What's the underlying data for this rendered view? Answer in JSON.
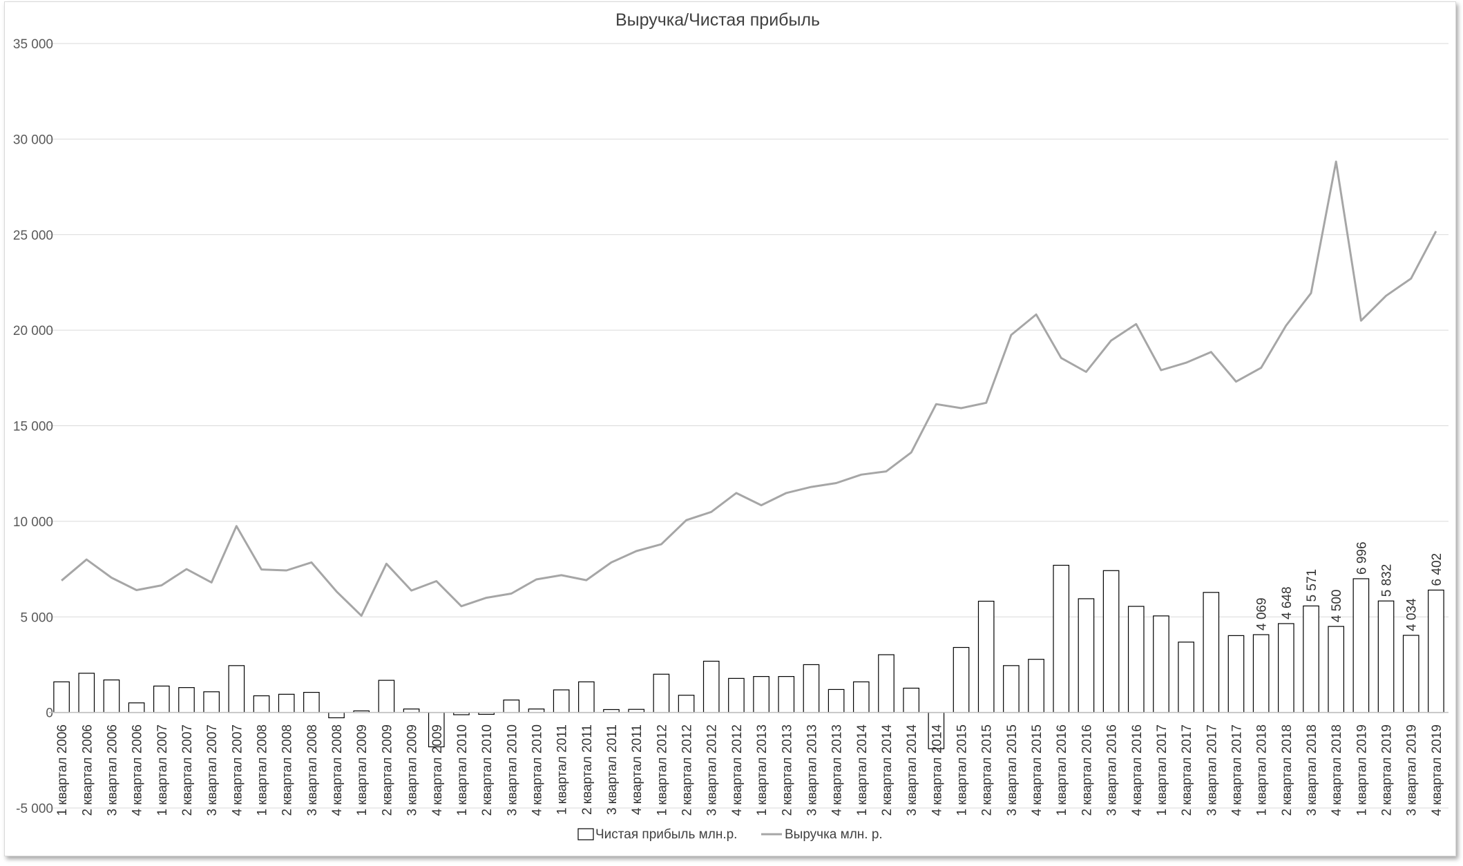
{
  "chart_data": {
    "type": "bar+line",
    "title": "Выручка/Чистая прибыль",
    "ylim": [
      -5000,
      35000
    ],
    "yticks": [
      -5000,
      0,
      5000,
      10000,
      15000,
      20000,
      25000,
      30000,
      35000
    ],
    "ytick_labels": [
      "-5 000",
      "0",
      "5 000",
      "10 000",
      "15 000",
      "20 000",
      "25 000",
      "30 000",
      "35 000"
    ],
    "grid": true,
    "legend_position": "bottom",
    "categories": [
      "1 квартал 2006",
      "2 квартал 2006",
      "3 квартал 2006",
      "4 квартал 2006",
      "1 квартал 2007",
      "2 квартал 2007",
      "3 квартал 2007",
      "4 квартал 2007",
      "1 квартал 2008",
      "2 квартал 2008",
      "3 квартал 2008",
      "4 квартал 2008",
      "1 квартал 2009",
      "2 квартал 2009",
      "3 квартал 2009",
      "4 квартал 2009",
      "1 квартал 2010",
      "2 квартал 2010",
      "3 квартал 2010",
      "4 квартал 2010",
      "1 квартал 2011",
      "2 квартал 2011",
      "3 квартал 2011",
      "4 квартал 2011",
      "1 квартал 2012",
      "2 квартал 2012",
      "3 квартал 2012",
      "4 квартал 2012",
      "1 квартал 2013",
      "2 квартал 2013",
      "3 квартал 2013",
      "4 квартал 2013",
      "1 квартал 2014",
      "2 квартал 2014",
      "3 квартал 2014",
      "4 квартал 2014",
      "1 квартал 2015",
      "2 квартал 2015",
      "3 квартал 2015",
      "4 квартал 2015",
      "1 квартал 2016",
      "2 квартал 2016",
      "3 квартал 2016",
      "4 квартал 2016",
      "1 квартал 2017",
      "2 квартал 2017",
      "3 квартал 2017",
      "4 квартал 2017",
      "1 квартал 2018",
      "2 квартал 2018",
      "3 квартал 2018",
      "4 квартал 2018",
      "1 квартал 2019",
      "2 квартал 2019",
      "3 квартал 2019",
      "4 квартал 2019"
    ],
    "series": [
      {
        "name": "Чистая прибыль млн.р.",
        "type": "bar",
        "color": "#ffffff",
        "stroke": "#000000",
        "values": [
          1600,
          2050,
          1700,
          500,
          1380,
          1300,
          1080,
          2450,
          870,
          950,
          1050,
          -280,
          80,
          1680,
          180,
          -1800,
          -120,
          -100,
          650,
          180,
          1180,
          1600,
          150,
          160,
          2000,
          900,
          2680,
          1780,
          1880,
          1880,
          2500,
          1200,
          1600,
          3020,
          1270,
          -1900,
          3400,
          5820,
          2450,
          2780,
          7700,
          5950,
          7420,
          5550,
          5050,
          3680,
          6280,
          4020,
          4069,
          4648,
          5571,
          4500,
          6996,
          5832,
          4034,
          6402
        ],
        "labels": {
          "48": "4 069",
          "49": "4 648",
          "50": "5 571",
          "51": "4 500",
          "52": "6 996",
          "53": "5 832",
          "54": "4 034",
          "55": "6 402"
        }
      },
      {
        "name": "Выручка млн. р.",
        "type": "line",
        "color": "#a6a6a6",
        "values": [
          6900,
          8000,
          7050,
          6400,
          6650,
          7500,
          6800,
          9750,
          7480,
          7430,
          7850,
          6330,
          5060,
          7780,
          6380,
          6870,
          5560,
          6000,
          6220,
          6960,
          7180,
          6920,
          7850,
          8440,
          8800,
          10060,
          10490,
          11480,
          10840,
          11480,
          11800,
          12000,
          12440,
          12610,
          13600,
          16130,
          15920,
          16200,
          19750,
          20820,
          18550,
          17820,
          19460,
          20320,
          17910,
          18300,
          18860,
          17310,
          18030,
          20240,
          21940,
          28820,
          20500,
          21800,
          22700,
          25180
        ]
      }
    ]
  }
}
